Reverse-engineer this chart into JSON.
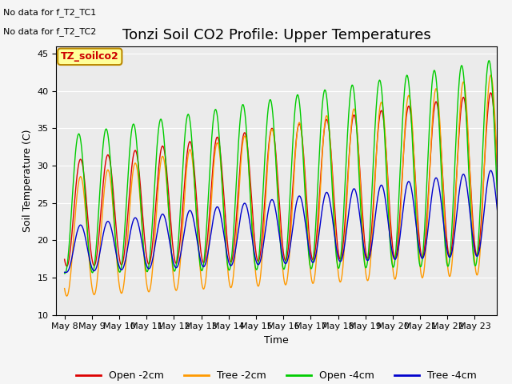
{
  "title": "Tonzi Soil CO2 Profile: Upper Temperatures",
  "ylabel": "Soil Temperature (C)",
  "xlabel": "Time",
  "ylim": [
    10,
    46
  ],
  "yticks": [
    10,
    15,
    20,
    25,
    30,
    35,
    40,
    45
  ],
  "plot_bg_color": "#ebebeb",
  "fig_bg_color": "#f5f5f5",
  "no_data_text1": "No data for f_T2_TC1",
  "no_data_text2": "No data for f_T2_TC2",
  "legend_box_text": "TZ_soilco2",
  "legend_box_color": "#ffff99",
  "legend_box_border": "#bb8800",
  "series_colors": {
    "open_2cm": "#dd0000",
    "tree_2cm": "#ff9900",
    "open_4cm": "#00cc00",
    "tree_4cm": "#0000cc"
  },
  "series_labels": [
    "Open -2cm",
    "Tree -2cm",
    "Open -4cm",
    "Tree -4cm"
  ],
  "day_labels": [
    "May 8",
    "May 9",
    "May 10",
    "May 11",
    "May 12",
    "May 13",
    "May 14",
    "May 15",
    "May 16",
    "May 17",
    "May 18",
    "May 19",
    "May 20",
    "May 21",
    "May 22",
    "May 23"
  ],
  "grid_color": "#ffffff",
  "title_fontsize": 13,
  "label_fontsize": 9,
  "tick_fontsize": 8
}
